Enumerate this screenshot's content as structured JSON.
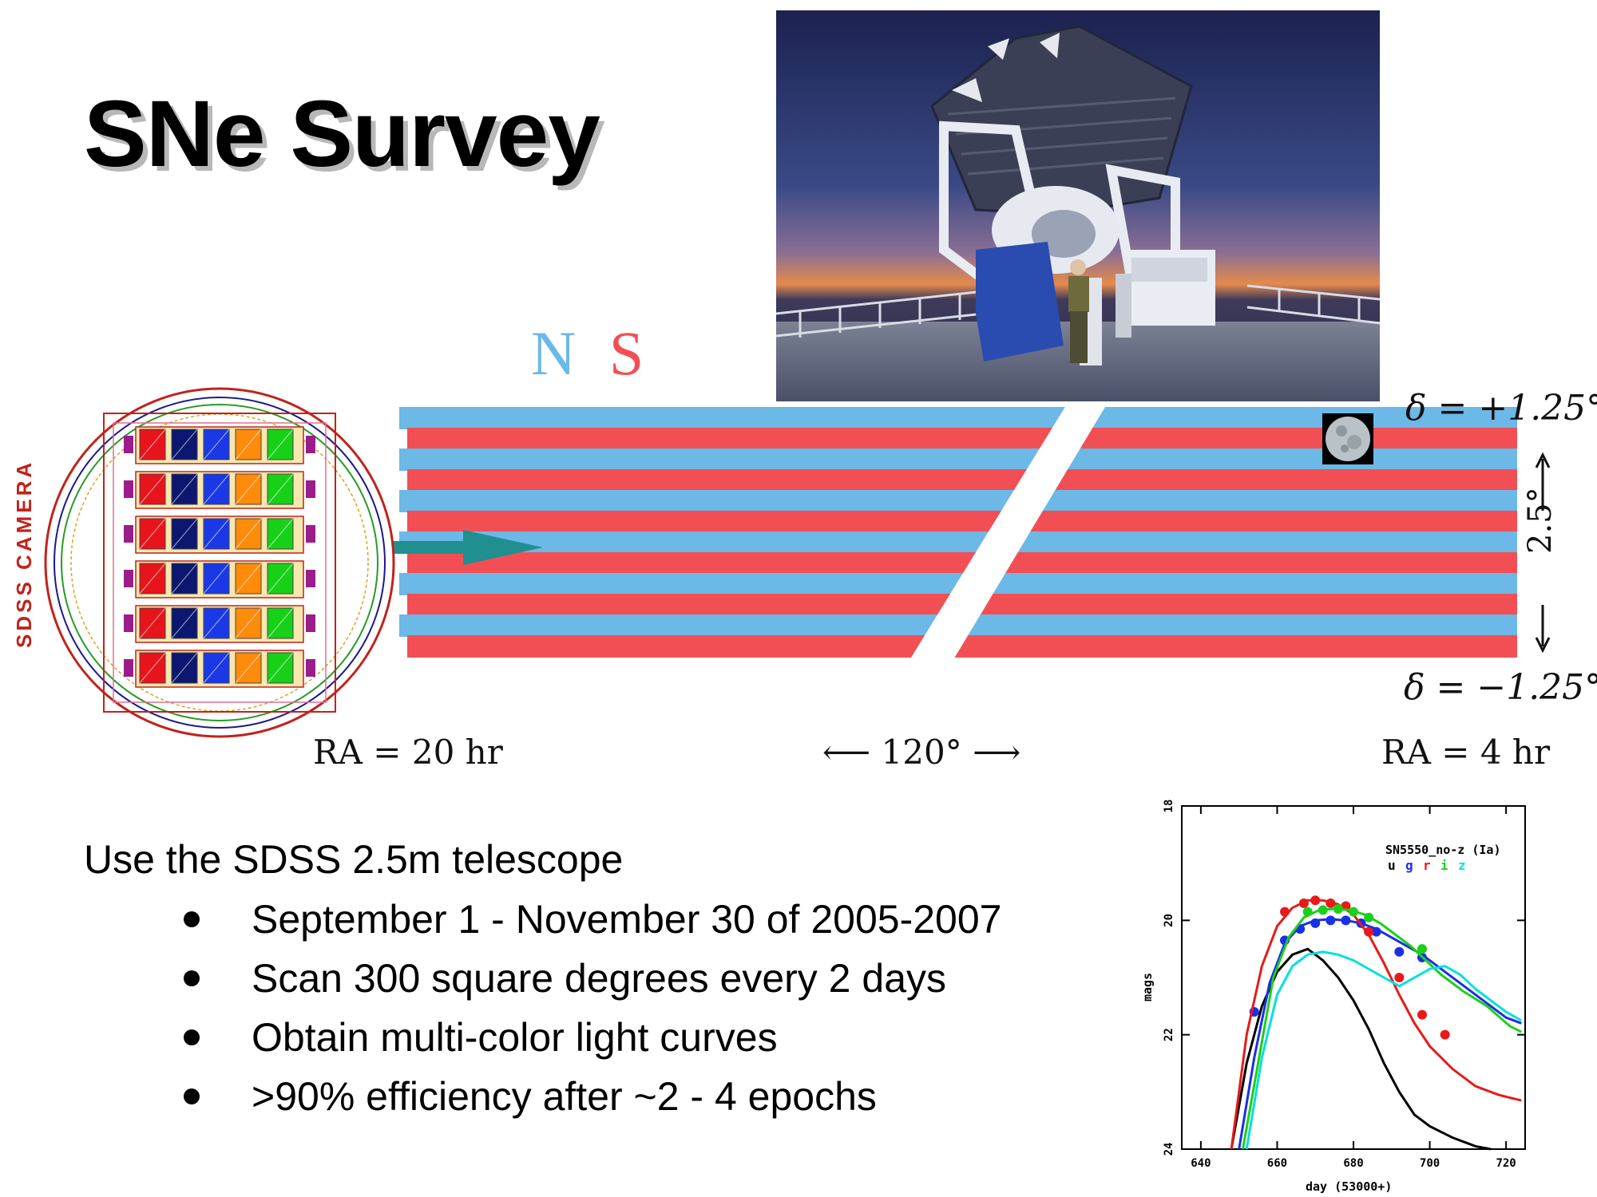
{
  "title": "SNe Survey",
  "legend": {
    "north": "N",
    "south": "S",
    "north_color": "#6cb8e6",
    "south_color": "#f24f55"
  },
  "diagram": {
    "camera_label": "SDSS CAMERA",
    "dec_top": "δ = +1.25°",
    "dec_bottom": "δ = −1.25°",
    "height_label": "2.5°",
    "ra_left": "RA = 20 hr",
    "ra_span": "⟵ 120° ⟶",
    "ra_right": "RA = 4 hr",
    "camera_filter_colors": [
      "#e8141b",
      "#0c1770",
      "#1a38e6",
      "#ff8b0a",
      "#18d018"
    ]
  },
  "bullets": {
    "intro": "Use the SDSS 2.5m telescope",
    "items": [
      "September 1 - November 30 of 2005-2007",
      "Scan 300 square degrees every 2 days",
      "Obtain multi-color light curves",
      ">90% efficiency after ~2 - 4 epochs"
    ]
  },
  "chart_data": {
    "type": "line",
    "title": "SN5550_no-z (Ia)",
    "bands": [
      "u",
      "g",
      "r",
      "i",
      "z"
    ],
    "band_colors": {
      "u": "#000000",
      "g": "#1a2fe8",
      "r": "#e81a1a",
      "i": "#1ad01a",
      "z": "#00e0e0"
    },
    "xlabel": "day (53000+)",
    "ylabel": "mags",
    "xlim": [
      635,
      725
    ],
    "ylim": [
      24,
      18
    ],
    "xticks": [
      640,
      660,
      680,
      700,
      720
    ],
    "yticks": [
      18,
      20,
      22,
      24
    ],
    "series": [
      {
        "name": "u",
        "line_x": [
          648,
          652,
          656,
          660,
          664,
          668,
          672,
          676,
          680,
          684,
          688,
          692,
          696,
          700,
          706,
          712,
          716
        ],
        "line_y": [
          24,
          22.5,
          21.5,
          20.9,
          20.6,
          20.5,
          20.7,
          21.0,
          21.4,
          21.9,
          22.5,
          23.0,
          23.4,
          23.6,
          23.8,
          23.95,
          24
        ],
        "points_x": [],
        "points_y": []
      },
      {
        "name": "g",
        "line_x": [
          650,
          654,
          658,
          662,
          666,
          670,
          674,
          678,
          682,
          686,
          690,
          694,
          698,
          702,
          708,
          714,
          720,
          724
        ],
        "line_y": [
          24,
          22.4,
          21.1,
          20.4,
          20.1,
          20.0,
          19.98,
          20.0,
          20.05,
          20.15,
          20.3,
          20.45,
          20.6,
          20.8,
          21.1,
          21.4,
          21.7,
          21.8
        ],
        "points_x": [
          654,
          662,
          666,
          670,
          674,
          678,
          682,
          686,
          692,
          698
        ],
        "points_y": [
          21.6,
          20.35,
          20.15,
          20.05,
          20.0,
          20.0,
          20.05,
          20.2,
          20.55,
          20.65
        ]
      },
      {
        "name": "r",
        "line_x": [
          648,
          652,
          656,
          660,
          664,
          668,
          672,
          676,
          680,
          684,
          688,
          692,
          696,
          700,
          706,
          712,
          718,
          724
        ],
        "line_y": [
          24,
          22.0,
          20.8,
          20.1,
          19.78,
          19.65,
          19.65,
          19.72,
          19.9,
          20.25,
          20.75,
          21.3,
          21.8,
          22.2,
          22.6,
          22.9,
          23.05,
          23.15
        ],
        "points_x": [
          662,
          667,
          670,
          674,
          678,
          684,
          692,
          698,
          704
        ],
        "points_y": [
          19.85,
          19.7,
          19.65,
          19.7,
          19.75,
          20.2,
          21.0,
          21.65,
          22.0
        ]
      },
      {
        "name": "i",
        "line_x": [
          651,
          655,
          659,
          663,
          667,
          671,
          675,
          679,
          683,
          687,
          691,
          695,
          699,
          703,
          709,
          715,
          721,
          724
        ],
        "line_y": [
          24,
          22.5,
          21.0,
          20.3,
          19.95,
          19.82,
          19.8,
          19.82,
          19.9,
          20.05,
          20.25,
          20.45,
          20.7,
          20.95,
          21.25,
          21.5,
          21.85,
          21.95
        ],
        "points_x": [
          668,
          672,
          676,
          680,
          684,
          698
        ],
        "points_y": [
          19.85,
          19.82,
          19.8,
          19.85,
          19.95,
          20.5
        ]
      },
      {
        "name": "z",
        "line_x": [
          652,
          656,
          660,
          664,
          668,
          672,
          676,
          680,
          684,
          688,
          692,
          696,
          700,
          704,
          708,
          712,
          716,
          720,
          724
        ],
        "line_y": [
          24,
          22.4,
          21.3,
          20.8,
          20.6,
          20.55,
          20.6,
          20.7,
          20.85,
          21.0,
          21.15,
          21.0,
          20.85,
          20.8,
          20.95,
          21.2,
          21.4,
          21.6,
          21.75
        ],
        "points_x": [],
        "points_y": []
      }
    ]
  }
}
